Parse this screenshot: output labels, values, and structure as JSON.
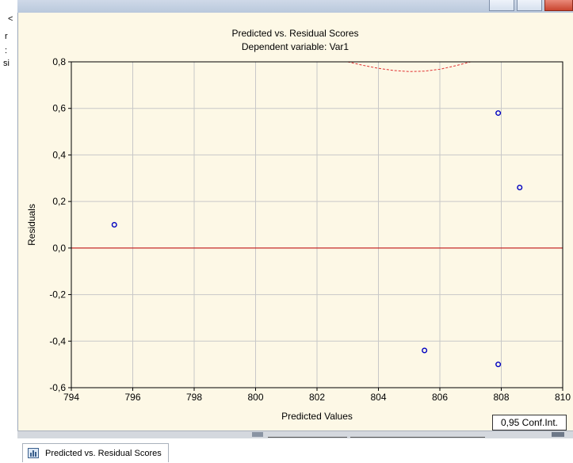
{
  "window": {
    "left_glyphs": [
      "<",
      "r",
      ":",
      "si"
    ]
  },
  "colors": {
    "background": "#fdf8e6",
    "grid": "#c8c8c8",
    "zero_line": "#c00000",
    "points": "#0000c0",
    "confidence_curve": "#e03030"
  },
  "chart_data": {
    "type": "scatter",
    "title": "Predicted vs. Residual Scores",
    "subtitle": "Dependent variable: Var1",
    "xlabel": "Predicted Values",
    "ylabel": "Residuals",
    "xlim": [
      794,
      810
    ],
    "ylim": [
      -0.6,
      0.8
    ],
    "xticks": [
      "794",
      "796",
      "798",
      "800",
      "802",
      "804",
      "806",
      "808",
      "810"
    ],
    "yticks": [
      "-0,6",
      "-0,4",
      "-0,2",
      "0,0",
      "0,2",
      "0,4",
      "0,6",
      "0,8"
    ],
    "grid": true,
    "points": [
      {
        "x": 795.4,
        "y": 0.1
      },
      {
        "x": 805.5,
        "y": -0.44
      },
      {
        "x": 807.9,
        "y": 0.58
      },
      {
        "x": 807.9,
        "y": -0.5
      },
      {
        "x": 808.6,
        "y": 0.26
      }
    ],
    "reference_line": {
      "y": 0.0
    },
    "confidence_curve": {
      "label": "0,95 Conf.Int.",
      "x": [
        803.0,
        803.5,
        804.0,
        804.5,
        805.0,
        805.5,
        806.0,
        806.5,
        807.0
      ],
      "y": [
        0.8,
        0.785,
        0.772,
        0.763,
        0.758,
        0.76,
        0.768,
        0.783,
        0.8
      ]
    }
  },
  "tab": {
    "label": "Predicted vs. Residual Scores"
  }
}
